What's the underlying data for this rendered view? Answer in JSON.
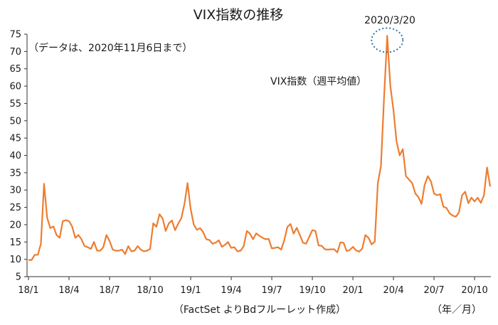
{
  "chart_data": {
    "type": "line",
    "title": "VIX指数の推移",
    "note": "（データは、2020年11月6日まで）",
    "source": "（FactSet よりBdフルーレット作成）",
    "x_unit": "（年／月）",
    "series": [
      {
        "name": "VIX指数（週平均値）",
        "color": "#ED7D31",
        "values": [
          9.8,
          9.8,
          11.3,
          11.3,
          14.5,
          31.8,
          22.0,
          19.0,
          19.5,
          17.0,
          16.2,
          21.0,
          21.3,
          21.0,
          19.5,
          16.2,
          17.0,
          15.8,
          13.8,
          13.5,
          13.0,
          15.0,
          12.5,
          12.5,
          13.5,
          17.0,
          15.3,
          12.8,
          12.5,
          12.5,
          12.8,
          11.5,
          13.8,
          12.3,
          12.5,
          13.8,
          12.8,
          12.3,
          12.5,
          13.0,
          20.4,
          19.4,
          23.0,
          21.8,
          18.2,
          20.4,
          21.2,
          18.4,
          20.3,
          21.9,
          26.0,
          32.0,
          24.5,
          20.0,
          18.5,
          19.0,
          17.8,
          15.8,
          15.6,
          14.5,
          14.8,
          15.5,
          13.6,
          14.2,
          15.0,
          13.3,
          13.5,
          12.3,
          12.5,
          13.8,
          18.2,
          17.4,
          15.8,
          17.5,
          16.8,
          16.2,
          15.8,
          15.9,
          13.2,
          13.3,
          13.5,
          12.8,
          15.5,
          19.4,
          20.2,
          17.4,
          19.1,
          17.0,
          14.8,
          14.5,
          16.5,
          18.4,
          18.2,
          14.0,
          13.9,
          12.9,
          12.8,
          12.9,
          12.9,
          12.0,
          14.9,
          14.8,
          12.4,
          12.7,
          13.6,
          12.6,
          12.2,
          13.1,
          17.0,
          16.2,
          14.3,
          15.1,
          32.0,
          37.0,
          57.0,
          74.5,
          60.0,
          53.0,
          44.0,
          40.0,
          41.8,
          34.0,
          33.0,
          32.0,
          29.0,
          28.0,
          26.0,
          31.5,
          34.0,
          32.5,
          29.0,
          28.5,
          28.8,
          25.2,
          24.8,
          23.3,
          22.6,
          22.3,
          23.5,
          28.5,
          29.5,
          26.2,
          27.8,
          26.7,
          27.8,
          26.3,
          28.4,
          36.5,
          31.0
        ]
      }
    ],
    "x_tick_labels": [
      "18/1",
      "18/4",
      "18/7",
      "18/10",
      "19/1",
      "19/4",
      "19/7",
      "19/10",
      "20/1",
      "20/4",
      "20/7",
      "20/10"
    ],
    "y_ticks": [
      5,
      10,
      15,
      20,
      25,
      30,
      35,
      40,
      45,
      50,
      55,
      60,
      65,
      70,
      75
    ],
    "ylim": [
      5,
      75
    ],
    "peak_label": "2020/3/20",
    "peak_circle_color": "#2E75B6",
    "grid": false,
    "legend": "none"
  }
}
